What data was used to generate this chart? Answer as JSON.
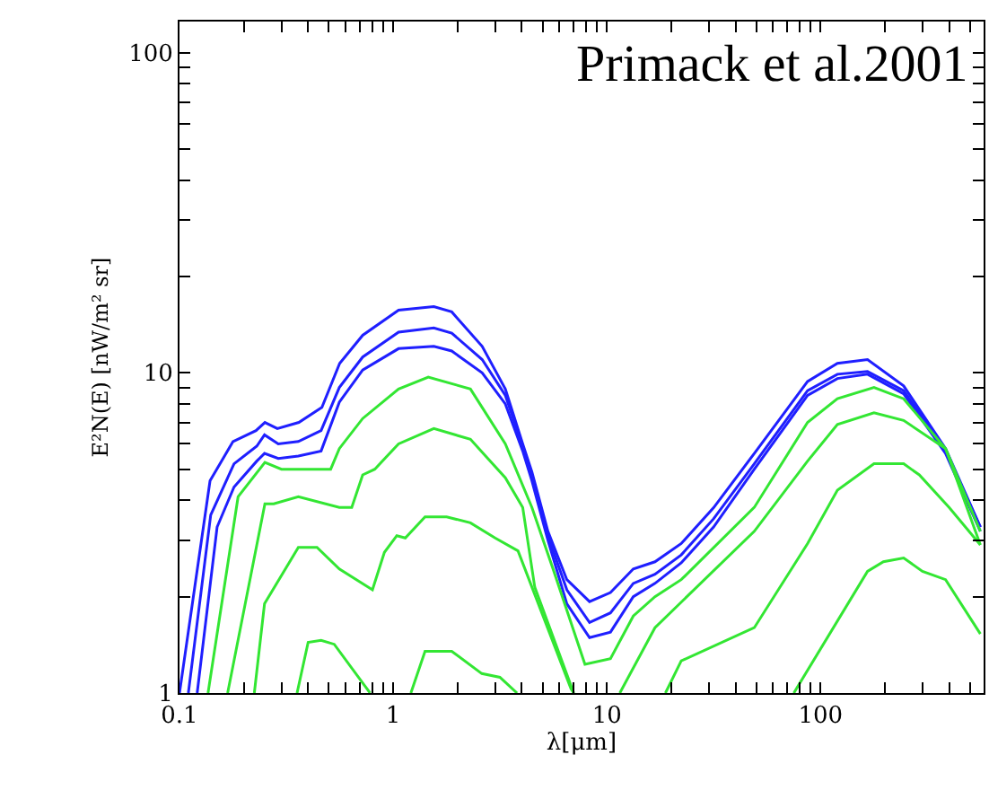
{
  "chart_data": {
    "type": "line",
    "xlabel": "λ[μm]",
    "ylabel": "E²N(E) [nW/m² sr]",
    "annotations": [
      "Primack et al.2001"
    ],
    "log": "xy",
    "marker": "none",
    "line_style": "solid",
    "xlim": [
      0.1,
      580
    ],
    "ylim": [
      1,
      125
    ],
    "xticks": [
      0.1,
      {
        "value": 0.2,
        "label": null
      },
      {
        "value": 0.3,
        "label": null
      },
      {
        "value": 0.4,
        "label": null
      },
      {
        "value": 0.5,
        "label": null
      },
      {
        "value": 0.6,
        "label": null
      },
      {
        "value": 0.7,
        "label": null
      },
      {
        "value": 0.8,
        "label": null
      },
      {
        "value": 0.9,
        "label": null
      },
      1,
      {
        "value": 2,
        "label": null
      },
      {
        "value": 3,
        "label": null
      },
      {
        "value": 4,
        "label": null
      },
      {
        "value": 5,
        "label": null
      },
      {
        "value": 6,
        "label": null
      },
      {
        "value": 7,
        "label": null
      },
      {
        "value": 8,
        "label": null
      },
      {
        "value": 9,
        "label": null
      },
      10,
      {
        "value": 20,
        "label": null
      },
      {
        "value": 30,
        "label": null
      },
      {
        "value": 40,
        "label": null
      },
      {
        "value": 50,
        "label": null
      },
      {
        "value": 60,
        "label": null
      },
      {
        "value": 70,
        "label": null
      },
      {
        "value": 80,
        "label": null
      },
      {
        "value": 90,
        "label": null
      },
      100,
      {
        "value": 200,
        "label": null
      },
      {
        "value": 300,
        "label": null
      },
      {
        "value": 400,
        "label": null
      },
      {
        "value": 500,
        "label": null
      }
    ],
    "yticks": [
      1,
      {
        "value": 2,
        "label": null
      },
      {
        "value": 3,
        "label": null
      },
      {
        "value": 4,
        "label": null
      },
      {
        "value": 5,
        "label": null
      },
      {
        "value": 6,
        "label": null
      },
      {
        "value": 7,
        "label": null
      },
      {
        "value": 8,
        "label": null
      },
      {
        "value": 9,
        "label": null
      },
      10,
      {
        "value": 20,
        "label": null
      },
      {
        "value": 30,
        "label": null
      },
      {
        "value": 40,
        "label": null
      },
      {
        "value": 50,
        "label": null
      },
      {
        "value": 60,
        "label": null
      },
      {
        "value": 70,
        "label": null
      },
      {
        "value": 80,
        "label": null
      },
      {
        "value": 90,
        "label": null
      },
      100
    ],
    "series": [
      {
        "color": "#1f1fff",
        "x": [
          0.1,
          0.139,
          0.178,
          0.228,
          0.251,
          0.287,
          0.362,
          0.464,
          0.562,
          0.72,
          1.06,
          1.55,
          1.88,
          2.61,
          3.35,
          4.04,
          4.46,
          5.3,
          6.5,
          8.3,
          10.4,
          13.3,
          16.8,
          22.3,
          31.6,
          49,
          87,
          120,
          166,
          245,
          385,
          560
        ],
        "values": [
          1,
          4.6,
          6.1,
          6.6,
          7.0,
          6.7,
          7.0,
          7.8,
          10.7,
          13.1,
          15.7,
          16.1,
          15.5,
          12.1,
          8.9,
          6.0,
          4.9,
          3.2,
          2.26,
          1.93,
          2.06,
          2.44,
          2.57,
          2.93,
          3.79,
          5.6,
          9.4,
          10.7,
          11.0,
          9.1,
          5.8,
          3.3
        ]
      },
      {
        "color": "#1f1fff",
        "x": [
          0.11,
          0.14,
          0.18,
          0.23,
          0.25,
          0.29,
          0.36,
          0.46,
          0.56,
          0.72,
          1.06,
          1.55,
          1.88,
          2.61,
          3.35,
          4.04,
          4.46,
          5.3,
          6.5,
          8.3,
          10.4,
          13.3,
          16.8,
          22.3,
          31.6,
          49,
          87,
          120,
          166,
          245,
          385,
          560
        ],
        "values": [
          1,
          3.6,
          5.2,
          5.9,
          6.4,
          6.0,
          6.1,
          6.6,
          9.0,
          11.2,
          13.4,
          13.8,
          13.3,
          11.0,
          8.5,
          5.9,
          4.8,
          3.1,
          2.1,
          1.66,
          1.78,
          2.2,
          2.35,
          2.7,
          3.5,
          5.2,
          8.8,
          9.9,
          10.1,
          8.8,
          5.7,
          3.3
        ]
      },
      {
        "color": "#1f1fff",
        "x": [
          0.121,
          0.15,
          0.18,
          0.23,
          0.25,
          0.29,
          0.36,
          0.46,
          0.56,
          0.72,
          1.06,
          1.55,
          1.88,
          2.61,
          3.35,
          4.04,
          4.46,
          5.3,
          6.5,
          8.3,
          10.4,
          13.3,
          16.8,
          22.3,
          31.6,
          49,
          87,
          120,
          166,
          245,
          385,
          560
        ],
        "values": [
          1,
          3.3,
          4.4,
          5.3,
          5.6,
          5.4,
          5.5,
          5.7,
          8.1,
          10.2,
          11.9,
          12.1,
          11.7,
          10.0,
          8.0,
          5.7,
          4.6,
          3.0,
          1.9,
          1.49,
          1.55,
          2.0,
          2.2,
          2.55,
          3.3,
          5.0,
          8.5,
          9.6,
          9.9,
          8.6,
          5.6,
          3.2
        ]
      },
      {
        "color": "#33e633",
        "x": [
          0.136,
          0.188,
          0.251,
          0.3,
          0.51,
          0.56,
          0.72,
          1.06,
          1.46,
          2.3,
          3.35,
          4.46,
          5.6,
          7.9,
          10.4,
          13.3,
          16.8,
          22.3,
          49,
          87,
          120,
          178,
          245,
          385,
          560
        ],
        "values": [
          1,
          4.1,
          5.25,
          5.0,
          5.0,
          5.8,
          7.2,
          8.9,
          9.7,
          8.9,
          6.0,
          3.8,
          2.44,
          1.23,
          1.28,
          1.74,
          2.0,
          2.26,
          3.8,
          7.0,
          8.3,
          9.0,
          8.3,
          5.8,
          3.2
        ]
      },
      {
        "color": "#33e633",
        "x": [
          0.168,
          0.251,
          0.276,
          0.36,
          0.56,
          0.64,
          0.72,
          0.82,
          1.06,
          1.55,
          2.3,
          3.35,
          4.04,
          4.6,
          7.0,
          9,
          11.5,
          16.8,
          49,
          87,
          120,
          178,
          245,
          385,
          560
        ],
        "values": [
          1,
          3.9,
          3.9,
          4.1,
          3.8,
          3.8,
          4.8,
          5.0,
          6.0,
          6.7,
          6.2,
          4.7,
          3.8,
          2.14,
          1,
          null,
          1,
          1.6,
          3.2,
          5.3,
          6.9,
          7.5,
          7.1,
          5.8,
          2.9
        ]
      },
      {
        "color": "#33e633",
        "x": [
          0.224,
          0.25,
          0.36,
          0.44,
          0.56,
          0.8,
          0.91,
          1.04,
          1.14,
          1.41,
          1.78,
          2.3,
          3.0,
          3.84,
          6.8,
          7.0,
          12,
          18.8,
          22.3,
          49,
          87,
          120,
          178,
          245,
          290,
          400,
          560
        ],
        "values": [
          1,
          1.9,
          2.85,
          2.85,
          2.44,
          2.1,
          2.75,
          3.1,
          3.05,
          3.55,
          3.55,
          3.4,
          3.05,
          2.78,
          1.03,
          1,
          null,
          1,
          1.26,
          1.6,
          2.93,
          4.3,
          5.2,
          5.2,
          4.8,
          3.8,
          2.9
        ]
      },
      {
        "color": "#33e633",
        "x": [
          0.355,
          0.4,
          0.46,
          0.53,
          0.78,
          1.0,
          1.21,
          1.41,
          1.88,
          2.6,
          3.16,
          3.8,
          20,
          75,
          166,
          197,
          245,
          300,
          385,
          560
        ],
        "values": [
          1,
          1.44,
          1.46,
          1.42,
          1,
          null,
          1,
          1.35,
          1.35,
          1.15,
          1.12,
          1,
          null,
          1,
          2.4,
          2.57,
          2.64,
          2.4,
          2.26,
          1.53
        ]
      }
    ]
  }
}
